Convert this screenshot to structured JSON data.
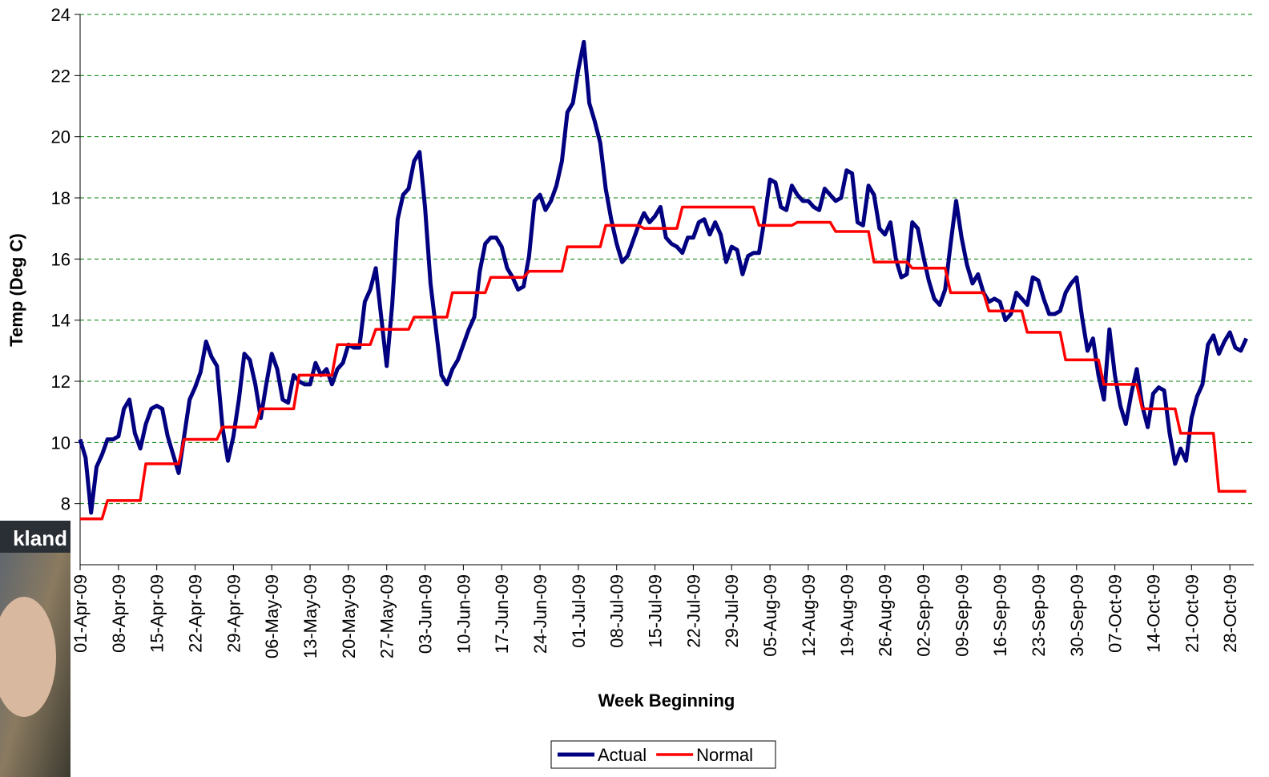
{
  "chart_data": {
    "type": "line",
    "x_label": "Week Beginning",
    "y_label": "Temp (Deg C)",
    "ylim": [
      6,
      24
    ],
    "yticks": [
      8,
      10,
      12,
      14,
      16,
      18,
      20,
      22,
      24
    ],
    "grid": true,
    "legend": "bottom",
    "categories": [
      "01-Apr-09",
      null,
      null,
      null,
      null,
      null,
      null,
      "08-Apr-09",
      null,
      null,
      null,
      null,
      null,
      null,
      "15-Apr-09",
      null,
      null,
      null,
      null,
      null,
      null,
      "22-Apr-09",
      null,
      null,
      null,
      null,
      null,
      null,
      "29-Apr-09",
      null,
      null,
      null,
      null,
      null,
      null,
      "06-May-09",
      null,
      null,
      null,
      null,
      null,
      null,
      "13-May-09",
      null,
      null,
      null,
      null,
      null,
      null,
      "20-May-09",
      null,
      null,
      null,
      null,
      null,
      null,
      "27-May-09",
      null,
      null,
      null,
      null,
      null,
      null,
      "03-Jun-09",
      null,
      null,
      null,
      null,
      null,
      null,
      "10-Jun-09",
      null,
      null,
      null,
      null,
      null,
      null,
      "17-Jun-09",
      null,
      null,
      null,
      null,
      null,
      null,
      "24-Jun-09",
      null,
      null,
      null,
      null,
      null,
      null,
      "01-Jul-09",
      null,
      null,
      null,
      null,
      null,
      null,
      "08-Jul-09",
      null,
      null,
      null,
      null,
      null,
      null,
      "15-Jul-09",
      null,
      null,
      null,
      null,
      null,
      null,
      "22-Jul-09",
      null,
      null,
      null,
      null,
      null,
      null,
      "29-Jul-09",
      null,
      null,
      null,
      null,
      null,
      null,
      "05-Aug-09",
      null,
      null,
      null,
      null,
      null,
      null,
      "12-Aug-09",
      null,
      null,
      null,
      null,
      null,
      null,
      "19-Aug-09",
      null,
      null,
      null,
      null,
      null,
      null,
      "26-Aug-09",
      null,
      null,
      null,
      null,
      null,
      null,
      "02-Sep-09",
      null,
      null,
      null,
      null,
      null,
      null,
      "09-Sep-09",
      null,
      null,
      null,
      null,
      null,
      null,
      "16-Sep-09",
      null,
      null,
      null,
      null,
      null,
      null,
      "23-Sep-09",
      null,
      null,
      null,
      null,
      null,
      null,
      "30-Sep-09",
      null,
      null,
      null,
      null,
      null,
      null,
      "07-Oct-09",
      null,
      null,
      null,
      null,
      null,
      null,
      "14-Oct-09",
      null,
      null,
      null,
      null,
      null,
      null,
      "21-Oct-09",
      null,
      null,
      null,
      null,
      null,
      null,
      "28-Oct-09",
      null,
      null,
      null
    ],
    "series": [
      {
        "name": "Actual",
        "color": "#000080",
        "width": 5,
        "values": [
          10.1,
          9.5,
          7.7,
          9.2,
          9.6,
          10.1,
          10.1,
          10.2,
          11.1,
          11.4,
          10.3,
          9.8,
          10.6,
          11.1,
          11.2,
          11.1,
          10.2,
          9.6,
          9.0,
          10.2,
          11.4,
          11.8,
          12.3,
          13.3,
          12.8,
          12.5,
          10.5,
          9.4,
          10.2,
          11.4,
          12.9,
          12.7,
          11.9,
          10.8,
          11.9,
          12.9,
          12.4,
          11.4,
          11.3,
          12.2,
          12.0,
          11.9,
          11.9,
          12.6,
          12.2,
          12.4,
          11.9,
          12.4,
          12.6,
          13.2,
          13.1,
          13.1,
          14.6,
          15.0,
          15.7,
          14.1,
          12.5,
          14.5,
          17.3,
          18.1,
          18.3,
          19.2,
          19.5,
          17.7,
          15.2,
          13.7,
          12.2,
          11.9,
          12.4,
          12.7,
          13.2,
          13.7,
          14.1,
          15.6,
          16.5,
          16.7,
          16.7,
          16.4,
          15.7,
          15.4,
          15.0,
          15.1,
          16.1,
          17.9,
          18.1,
          17.6,
          17.9,
          18.4,
          19.2,
          20.8,
          21.1,
          22.2,
          23.1,
          21.1,
          20.5,
          19.8,
          18.3,
          17.3,
          16.5,
          15.9,
          16.1,
          16.6,
          17.1,
          17.5,
          17.2,
          17.4,
          17.7,
          16.7,
          16.5,
          16.4,
          16.2,
          16.7,
          16.7,
          17.2,
          17.3,
          16.8,
          17.2,
          16.8,
          15.9,
          16.4,
          16.3,
          15.5,
          16.1,
          16.2,
          16.2,
          17.3,
          18.6,
          18.5,
          17.7,
          17.6,
          18.4,
          18.1,
          17.9,
          17.9,
          17.7,
          17.6,
          18.3,
          18.1,
          17.9,
          18.0,
          18.9,
          18.8,
          17.2,
          17.1,
          18.4,
          18.1,
          17.0,
          16.8,
          17.2,
          16.0,
          15.4,
          15.5,
          17.2,
          17.0,
          16.1,
          15.3,
          14.7,
          14.5,
          15.0,
          16.5,
          17.9,
          16.7,
          15.8,
          15.2,
          15.5,
          14.9,
          14.6,
          14.7,
          14.6,
          14.0,
          14.2,
          14.9,
          14.7,
          14.5,
          15.4,
          15.3,
          14.7,
          14.2,
          14.2,
          14.3,
          14.9,
          15.2,
          15.4,
          14.1,
          13.0,
          13.4,
          12.2,
          11.4,
          13.7,
          12.2,
          11.2,
          10.6,
          11.6,
          12.4,
          11.2,
          10.5,
          11.6,
          11.8,
          11.7,
          10.3,
          9.3,
          9.8,
          9.4,
          10.8,
          11.5,
          11.9,
          13.2,
          13.5,
          12.9,
          13.3,
          13.6,
          13.1,
          13.0,
          13.4
        ]
      },
      {
        "name": "Normal",
        "color": "#ff0000",
        "width": 3.5,
        "values": [
          7.5,
          7.5,
          7.5,
          7.5,
          7.5,
          8.1,
          8.1,
          8.1,
          8.1,
          8.1,
          8.1,
          8.1,
          9.3,
          9.3,
          9.3,
          9.3,
          9.3,
          9.3,
          9.3,
          10.1,
          10.1,
          10.1,
          10.1,
          10.1,
          10.1,
          10.1,
          10.5,
          10.5,
          10.5,
          10.5,
          10.5,
          10.5,
          10.5,
          11.1,
          11.1,
          11.1,
          11.1,
          11.1,
          11.1,
          11.1,
          12.2,
          12.2,
          12.2,
          12.2,
          12.2,
          12.2,
          12.2,
          13.2,
          13.2,
          13.2,
          13.2,
          13.2,
          13.2,
          13.2,
          13.7,
          13.7,
          13.7,
          13.7,
          13.7,
          13.7,
          13.7,
          14.1,
          14.1,
          14.1,
          14.1,
          14.1,
          14.1,
          14.1,
          14.9,
          14.9,
          14.9,
          14.9,
          14.9,
          14.9,
          14.9,
          15.4,
          15.4,
          15.4,
          15.4,
          15.4,
          15.4,
          15.4,
          15.6,
          15.6,
          15.6,
          15.6,
          15.6,
          15.6,
          15.6,
          16.4,
          16.4,
          16.4,
          16.4,
          16.4,
          16.4,
          16.4,
          17.1,
          17.1,
          17.1,
          17.1,
          17.1,
          17.1,
          17.1,
          17.0,
          17.0,
          17.0,
          17.0,
          17.0,
          17.0,
          17.0,
          17.7,
          17.7,
          17.7,
          17.7,
          17.7,
          17.7,
          17.7,
          17.7,
          17.7,
          17.7,
          17.7,
          17.7,
          17.7,
          17.7,
          17.1,
          17.1,
          17.1,
          17.1,
          17.1,
          17.1,
          17.1,
          17.2,
          17.2,
          17.2,
          17.2,
          17.2,
          17.2,
          17.2,
          16.9,
          16.9,
          16.9,
          16.9,
          16.9,
          16.9,
          16.9,
          15.9,
          15.9,
          15.9,
          15.9,
          15.9,
          15.9,
          15.9,
          15.7,
          15.7,
          15.7,
          15.7,
          15.7,
          15.7,
          15.7,
          14.9,
          14.9,
          14.9,
          14.9,
          14.9,
          14.9,
          14.9,
          14.3,
          14.3,
          14.3,
          14.3,
          14.3,
          14.3,
          14.3,
          13.6,
          13.6,
          13.6,
          13.6,
          13.6,
          13.6,
          13.6,
          12.7,
          12.7,
          12.7,
          12.7,
          12.7,
          12.7,
          12.7,
          11.9,
          11.9,
          11.9,
          11.9,
          11.9,
          11.9,
          11.9,
          11.1,
          11.1,
          11.1,
          11.1,
          11.1,
          11.1,
          11.1,
          10.3,
          10.3,
          10.3,
          10.3,
          10.3,
          10.3,
          10.3,
          8.4,
          8.4,
          8.4,
          8.4,
          8.4,
          8.4
        ]
      }
    ]
  },
  "overlay_label": "kland"
}
